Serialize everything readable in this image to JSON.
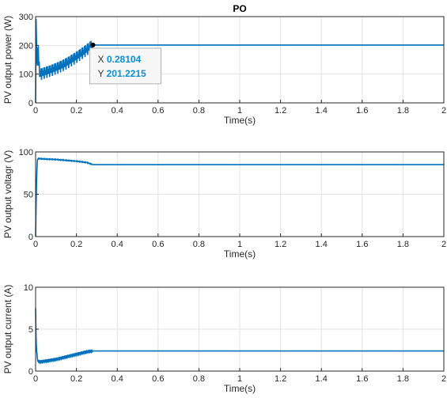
{
  "chart_data": [
    {
      "type": "line",
      "title": "PO",
      "xlabel": "Time(s)",
      "ylabel": "PV output power (W)",
      "xlim": [
        0,
        2
      ],
      "ylim": [
        0,
        300
      ],
      "grid": true,
      "xticks": [
        "0",
        "0.2",
        "0.4",
        "0.6",
        "0.8",
        "1",
        "1.2",
        "1.4",
        "1.6",
        "1.8",
        "2"
      ],
      "yticks": [
        "0",
        "100",
        "200",
        "300"
      ],
      "series": [
        {
          "color": "#0072BD",
          "x": [
            0,
            0.002,
            0.005,
            0.008,
            0.011,
            0.02,
            0.04,
            0.06,
            0.08,
            0.1,
            0.12,
            0.14,
            0.16,
            0.18,
            0.2,
            0.22,
            0.24,
            0.26,
            0.28104,
            0.3,
            0.5,
            1.0,
            1.5,
            2.0
          ],
          "y": [
            0,
            300,
            195,
            100,
            200,
            98,
            103,
            108,
            113,
            119,
            125,
            132,
            140,
            149,
            158,
            168,
            178,
            189,
            201.2215,
            201.2,
            201.2,
            201.2,
            201.2,
            201.2
          ],
          "oscillation_amplitude_until_x": 0.28,
          "oscillation_amplitude": 40
        }
      ],
      "datatip": {
        "x_label": "X",
        "x_value": "0.28104",
        "y_label": "Y",
        "y_value": "201.2215",
        "x": 0.28104,
        "y": 201.2215
      }
    },
    {
      "type": "line",
      "title": "",
      "xlabel": "Time(s)",
      "ylabel": "PV output voltagr (V)",
      "xlim": [
        0,
        2
      ],
      "ylim": [
        0,
        100
      ],
      "grid": true,
      "xticks": [
        "0",
        "0.2",
        "0.4",
        "0.6",
        "0.8",
        "1",
        "1.2",
        "1.4",
        "1.6",
        "1.8",
        "2"
      ],
      "yticks": [
        "0",
        "50",
        "100"
      ],
      "series": [
        {
          "color": "#0072BD",
          "x": [
            0,
            0.004,
            0.008,
            0.012,
            0.02,
            0.05,
            0.1,
            0.15,
            0.2,
            0.25,
            0.28,
            0.3,
            0.5,
            1.0,
            1.5,
            2.0
          ],
          "y": [
            0,
            60,
            90,
            92,
            92,
            91.5,
            91,
            90,
            89,
            87.5,
            85,
            85,
            85,
            85,
            85,
            85
          ],
          "oscillation_amplitude_until_x": 0.28,
          "oscillation_amplitude": 0.8
        }
      ]
    },
    {
      "type": "line",
      "title": "",
      "xlabel": "Time(s)",
      "ylabel": "PV output current (A)",
      "xlim": [
        0,
        2
      ],
      "ylim": [
        0,
        10
      ],
      "grid": true,
      "xticks": [
        "0",
        "0.2",
        "0.4",
        "0.6",
        "0.8",
        "1",
        "1.2",
        "1.4",
        "1.6",
        "1.8",
        "2"
      ],
      "yticks": [
        "0",
        "5",
        "10"
      ],
      "series": [
        {
          "color": "#0072BD",
          "x": [
            0,
            0.003,
            0.006,
            0.01,
            0.02,
            0.05,
            0.1,
            0.15,
            0.2,
            0.25,
            0.28,
            0.3,
            0.5,
            1.0,
            1.5,
            2.0
          ],
          "y": [
            7.5,
            2.8,
            2.3,
            1.2,
            1.1,
            1.2,
            1.4,
            1.7,
            2.0,
            2.3,
            2.4,
            2.4,
            2.4,
            2.4,
            2.4,
            2.4
          ],
          "oscillation_amplitude_until_x": 0.28,
          "oscillation_amplitude": 0.35
        }
      ]
    }
  ]
}
